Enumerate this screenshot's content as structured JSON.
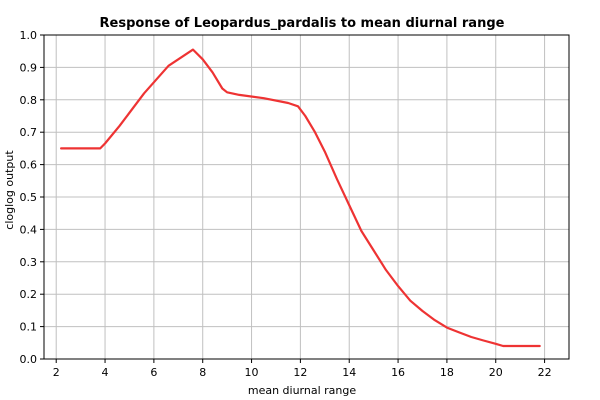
{
  "chart_data": {
    "type": "line",
    "title": "Response of Leopardus_pardalis to mean diurnal range",
    "xlabel": "mean diurnal range",
    "ylabel": "cloglog output",
    "xlim": [
      1.5,
      23.0
    ],
    "ylim": [
      0.0,
      1.0
    ],
    "xticks": [
      2,
      4,
      6,
      8,
      10,
      12,
      14,
      16,
      18,
      20,
      22
    ],
    "yticks": [
      0.0,
      0.1,
      0.2,
      0.3,
      0.4,
      0.5,
      0.6,
      0.7,
      0.8,
      0.9,
      1.0
    ],
    "ytick_labels": [
      "0.0",
      "0.1",
      "0.2",
      "0.3",
      "0.4",
      "0.5",
      "0.6",
      "0.7",
      "0.8",
      "0.9",
      "1.0"
    ],
    "grid": true,
    "colors": {
      "line": "#ee3333",
      "grid": "#c0c0c0",
      "axis": "#000000"
    },
    "series": [
      {
        "x": [
          2.2,
          3.8,
          4.0,
          4.6,
          5.6,
          6.6,
          7.6,
          8.0,
          8.4,
          8.8,
          9.0,
          9.5,
          10.5,
          11.5,
          11.9,
          12.2,
          12.6,
          13.0,
          13.5,
          14.0,
          14.5,
          15.0,
          15.5,
          16.0,
          16.5,
          17.0,
          17.5,
          18.0,
          18.5,
          19.0,
          19.5,
          20.0,
          20.3,
          20.6,
          21.0,
          21.8
        ],
        "y": [
          0.65,
          0.65,
          0.665,
          0.72,
          0.82,
          0.905,
          0.955,
          0.925,
          0.885,
          0.835,
          0.823,
          0.815,
          0.805,
          0.79,
          0.78,
          0.75,
          0.7,
          0.64,
          0.555,
          0.475,
          0.395,
          0.335,
          0.275,
          0.225,
          0.18,
          0.148,
          0.12,
          0.097,
          0.082,
          0.068,
          0.057,
          0.047,
          0.04,
          0.04,
          0.04,
          0.04
        ]
      }
    ]
  }
}
